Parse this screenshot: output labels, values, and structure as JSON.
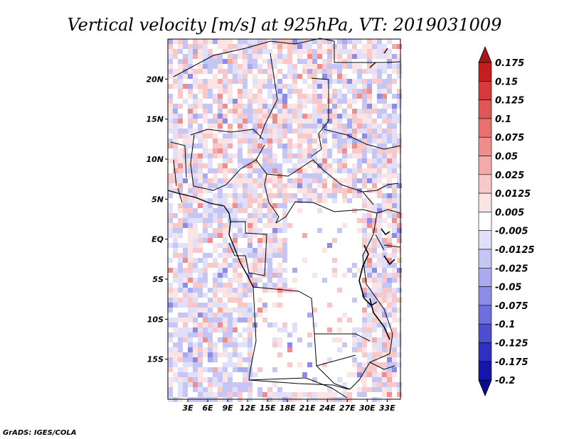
{
  "chart_data": {
    "type": "heatmap",
    "title": "Vertical velocity [m/s] at 925hPa, VT: 2019031009",
    "variable": "Vertical velocity",
    "units": "m/s",
    "level": "925hPa",
    "valid_time": "2019031009",
    "lon_range": [
      0,
      35
    ],
    "lat_range": [
      -20,
      25
    ],
    "x_ticks": [
      {
        "value": 3,
        "label": "3E"
      },
      {
        "value": 6,
        "label": "6E"
      },
      {
        "value": 9,
        "label": "9E"
      },
      {
        "value": 12,
        "label": "12E"
      },
      {
        "value": 15,
        "label": "15E"
      },
      {
        "value": 18,
        "label": "18E"
      },
      {
        "value": 21,
        "label": "21E"
      },
      {
        "value": 24,
        "label": "24E"
      },
      {
        "value": 27,
        "label": "27E"
      },
      {
        "value": 30,
        "label": "30E"
      },
      {
        "value": 33,
        "label": "33E"
      }
    ],
    "y_ticks": [
      {
        "value": 20,
        "label": "20N"
      },
      {
        "value": 15,
        "label": "15N"
      },
      {
        "value": 10,
        "label": "10N"
      },
      {
        "value": 5,
        "label": "5N"
      },
      {
        "value": 0,
        "label": "EQ"
      },
      {
        "value": -5,
        "label": "5S"
      },
      {
        "value": -10,
        "label": "10S"
      },
      {
        "value": -15,
        "label": "15S"
      }
    ],
    "colorbar": {
      "labels": [
        "0.175",
        "0.15",
        "0.125",
        "0.1",
        "0.075",
        "0.05",
        "0.025",
        "0.0125",
        "0.005",
        "-0.005",
        "-0.0125",
        "-0.025",
        "-0.05",
        "-0.075",
        "-0.1",
        "-0.125",
        "-0.175",
        "-0.2"
      ],
      "colors": [
        "#a51818",
        "#c41e1e",
        "#d63a3a",
        "#e05555",
        "#e97070",
        "#ef8d8d",
        "#f5aaaa",
        "#f9c9c9",
        "#fde4e4",
        "#ffffff",
        "#e0e0fb",
        "#c6c6f5",
        "#aaaaee",
        "#8c8ce6",
        "#6e6ede",
        "#4e4ed2",
        "#2f2fc2",
        "#1515aa",
        "#0a0a8c"
      ]
    },
    "credit": "GrADS: IGES/COLA"
  }
}
